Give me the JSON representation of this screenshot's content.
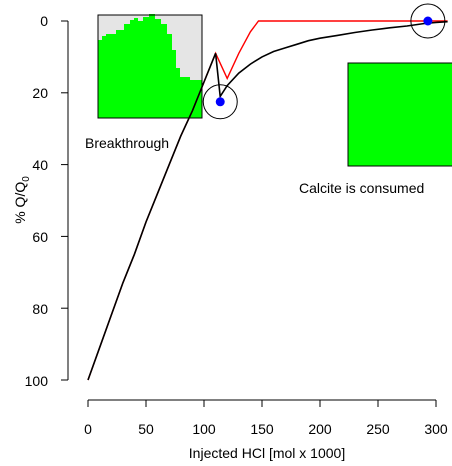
{
  "chart_data": {
    "type": "line",
    "title": "",
    "xlabel": "Injected HCl [mol x 1000]",
    "ylabel_prefix": "% Q/Q",
    "ylabel_subscript": "0",
    "xlim": [
      -7,
      318
    ],
    "ylim": [
      103,
      -5
    ],
    "y_reversed": true,
    "grid": false,
    "legend": "none",
    "x_ticks": [
      "0",
      "50",
      "100",
      "150",
      "200",
      "250",
      "300"
    ],
    "x_tick_values": [
      0,
      50,
      100,
      150,
      200,
      250,
      300
    ],
    "y_ticks": [
      "0",
      "20",
      "40",
      "60",
      "80",
      "100"
    ],
    "y_tick_values": [
      0,
      20,
      40,
      60,
      80,
      100
    ],
    "series": [
      {
        "color": "#000000",
        "x": [
          0,
          10,
          20,
          30,
          40,
          50,
          60,
          70,
          80,
          90,
          100,
          110,
          114,
          120,
          130,
          140,
          150,
          160,
          170,
          180,
          190,
          200,
          215,
          230,
          245,
          260,
          275,
          290,
          300,
          310
        ],
        "y": [
          100,
          91,
          82,
          73,
          65,
          56,
          48,
          40,
          32,
          25,
          17,
          9,
          21,
          18,
          14.5,
          12,
          10,
          8.5,
          7.5,
          6.5,
          5.5,
          4.8,
          4,
          3.2,
          2.5,
          1.9,
          1.4,
          0.7,
          0.4,
          0.2
        ]
      },
      {
        "color": "#ff0000",
        "x": [
          0,
          10,
          20,
          30,
          40,
          50,
          60,
          70,
          80,
          90,
          100,
          110,
          120,
          130,
          140,
          147,
          200,
          250,
          300,
          310
        ],
        "y": [
          100,
          91,
          82,
          73,
          65,
          56,
          48,
          40,
          32,
          25,
          17,
          9,
          16,
          9,
          3,
          0,
          0,
          0,
          0,
          0
        ]
      }
    ],
    "markers": [
      {
        "x": 114,
        "y": 22.5,
        "color": "#0000ff"
      },
      {
        "x": 293,
        "y": 0,
        "color": "#0000ff"
      }
    ],
    "annotations": {
      "breakthrough": "Breakthrough",
      "calcite": "Calcite is consumed"
    },
    "inset_colors": {
      "fill": "#00ff00",
      "background": "#e5e5e5",
      "border": "#000000"
    }
  }
}
